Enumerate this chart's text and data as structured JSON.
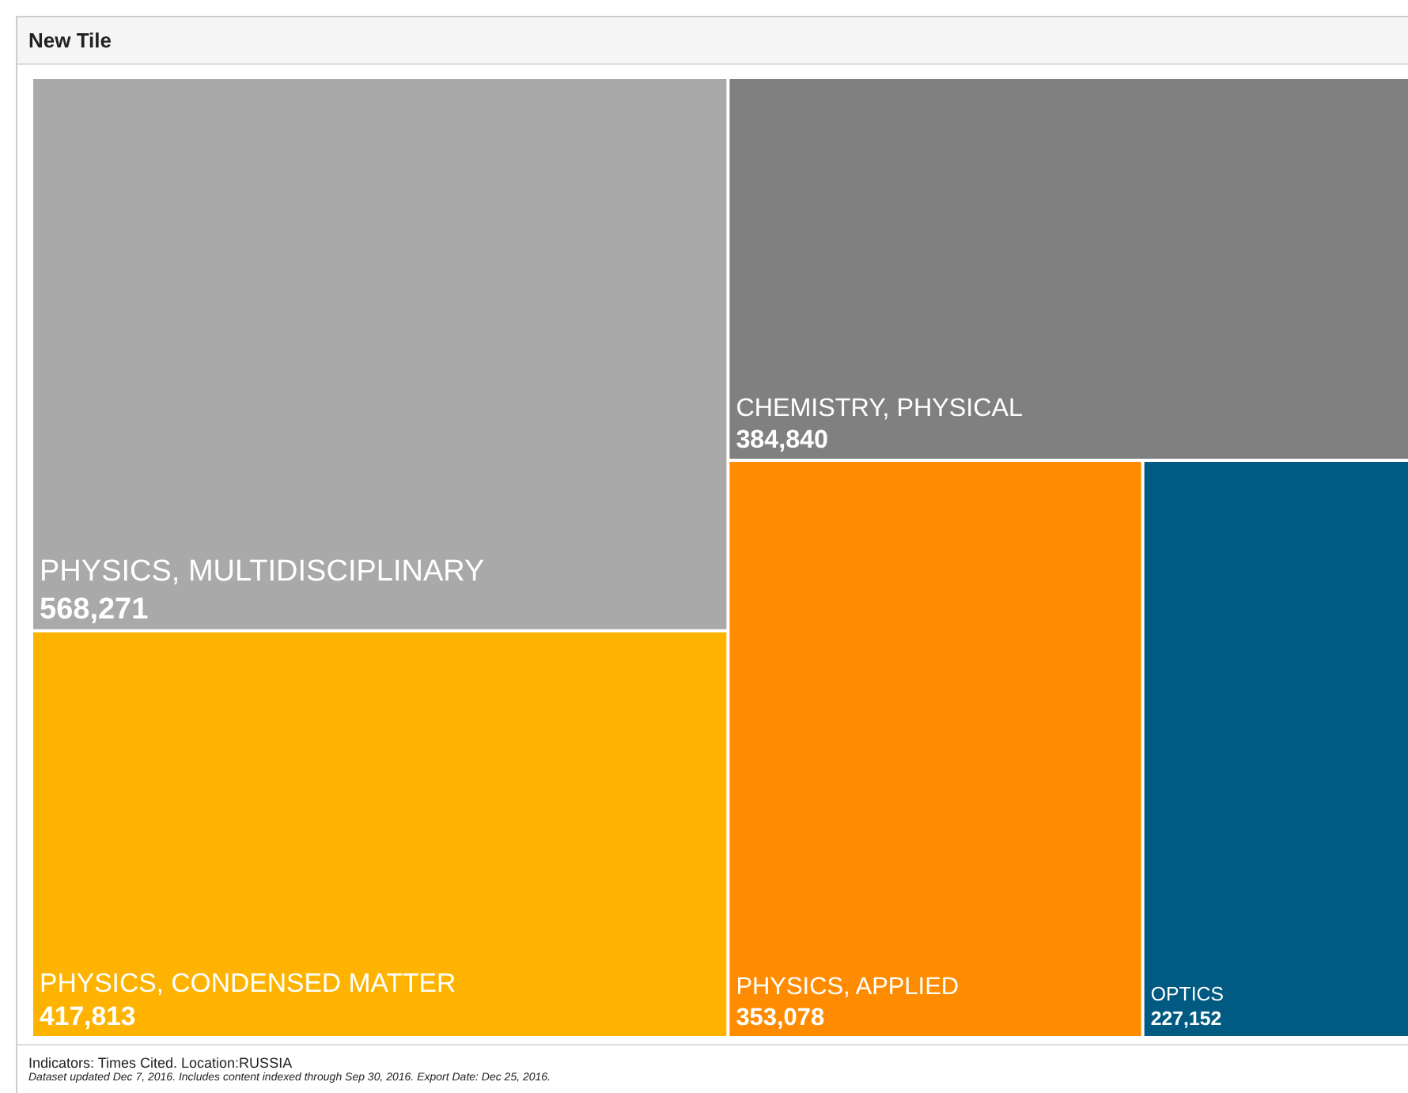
{
  "chart_data": {
    "type": "other",
    "title": "New Tile",
    "categories": [
      "PHYSICS, MULTIDISCIPLINARY",
      "PHYSICS, CONDENSED MATTER",
      "CHEMISTRY, PHYSICAL",
      "PHYSICS, APPLIED",
      "OPTICS"
    ],
    "values": [
      568271,
      417813,
      384840,
      353078,
      227152
    ],
    "value_labels": [
      "568,271",
      "417,813",
      "384,840",
      "353,078",
      "227,152"
    ],
    "colors": [
      "#a9a9a9",
      "#fdb300",
      "#808080",
      "#ff8c00",
      "#005a82"
    ],
    "annotations": [
      "Indicators: Times Cited. Location:RUSSIA",
      "Dataset updated Dec 7, 2016. Includes content indexed through Sep 30, 2016. Export Date: Dec 25, 2016."
    ]
  }
}
